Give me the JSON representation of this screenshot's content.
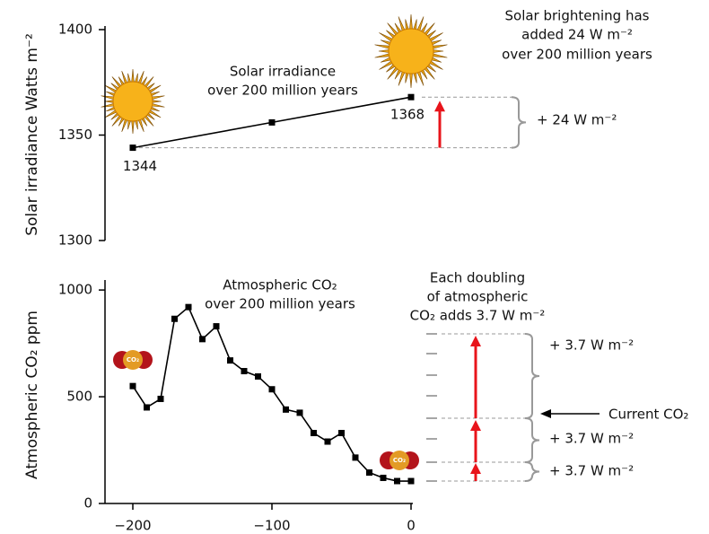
{
  "chart_data": [
    {
      "type": "line",
      "ylabel": "Solar irradiance Watts m⁻²",
      "x": [
        -200,
        -100,
        0
      ],
      "values": [
        1344,
        1356,
        1368
      ],
      "color": "#000000",
      "xlim": [
        -220,
        0
      ],
      "ylim": [
        1300,
        1400
      ],
      "yticks": [
        1300,
        1350,
        1400
      ],
      "annotations": [
        [
          "Solar irradiance",
          "over 200 million years"
        ],
        [
          "Solar brightening has",
          "added 24 W m⁻²",
          "over 200 million years"
        ],
        "+ 24 W m⁻²"
      ],
      "arrow_color": "#e8141b"
    },
    {
      "type": "line",
      "ylabel": "Atmospheric CO₂ ppm",
      "x": [
        -200,
        -190,
        -180,
        -170,
        -160,
        -150,
        -140,
        -130,
        -120,
        -110,
        -100,
        -90,
        -80,
        -70,
        -60,
        -50,
        -40,
        -30,
        -20,
        -10,
        0
      ],
      "values": [
        550,
        450,
        490,
        865,
        920,
        770,
        830,
        670,
        620,
        595,
        535,
        440,
        425,
        330,
        290,
        330,
        215,
        145,
        120,
        105,
        105
      ],
      "color": "#000000",
      "xlim": [
        -220,
        0
      ],
      "xticks": [
        {
          "value": -200,
          "label": "−200"
        },
        {
          "value": -100,
          "label": "−100"
        },
        0
      ],
      "ylim": [
        0,
        1030
      ],
      "yticks": [
        0,
        500,
        1000
      ],
      "annotations": [
        [
          "Atmospheric CO₂",
          "over 200 million years"
        ],
        [
          "Each doubling",
          "of atmospheric",
          "CO₂ adds 3.7 W m⁻²"
        ],
        "Current CO₂",
        "+ 3.7 W m⁻²",
        "+ 3.7 W m⁻²",
        "+ 3.7 W m⁻²"
      ],
      "icon_label": "CO₂",
      "arrow_color": "#e8141b"
    }
  ]
}
